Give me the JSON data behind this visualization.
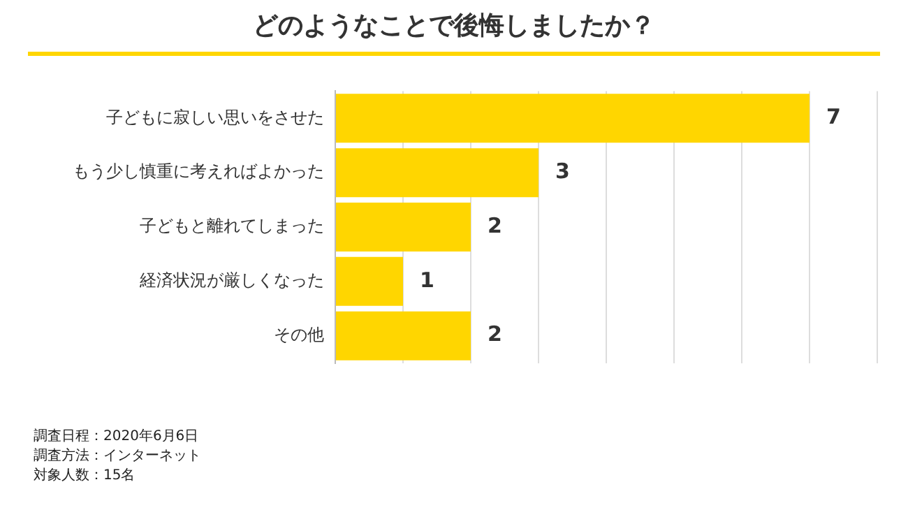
{
  "chart_data": {
    "type": "bar",
    "orientation": "horizontal",
    "title": "どのようなことで後悔しましたか？",
    "categories": [
      "子どもに寂しい思いをさせた",
      "もう少し慎重に考えればよかった",
      "子どもと離れてしまった",
      "経済状況が厳しくなった",
      "その他"
    ],
    "values": [
      7,
      3,
      2,
      1,
      2
    ],
    "color": "#ffd600",
    "data_labels": true,
    "grid": "x",
    "tick_labels": "y",
    "xlim": [
      0,
      8
    ],
    "xticks": [
      {
        "value": 0,
        "label": null
      },
      {
        "value": 1,
        "label": null
      },
      {
        "value": 2,
        "label": null
      },
      {
        "value": 3,
        "label": null
      },
      {
        "value": 4,
        "label": null
      },
      {
        "value": 5,
        "label": null
      },
      {
        "value": 6,
        "label": null
      },
      {
        "value": 7,
        "label": null
      },
      {
        "value": 8,
        "label": null
      }
    ],
    "annotations": [
      "調査日程：2020年6月6日",
      "調査方法：インターネット",
      "対象人数：15名"
    ]
  }
}
